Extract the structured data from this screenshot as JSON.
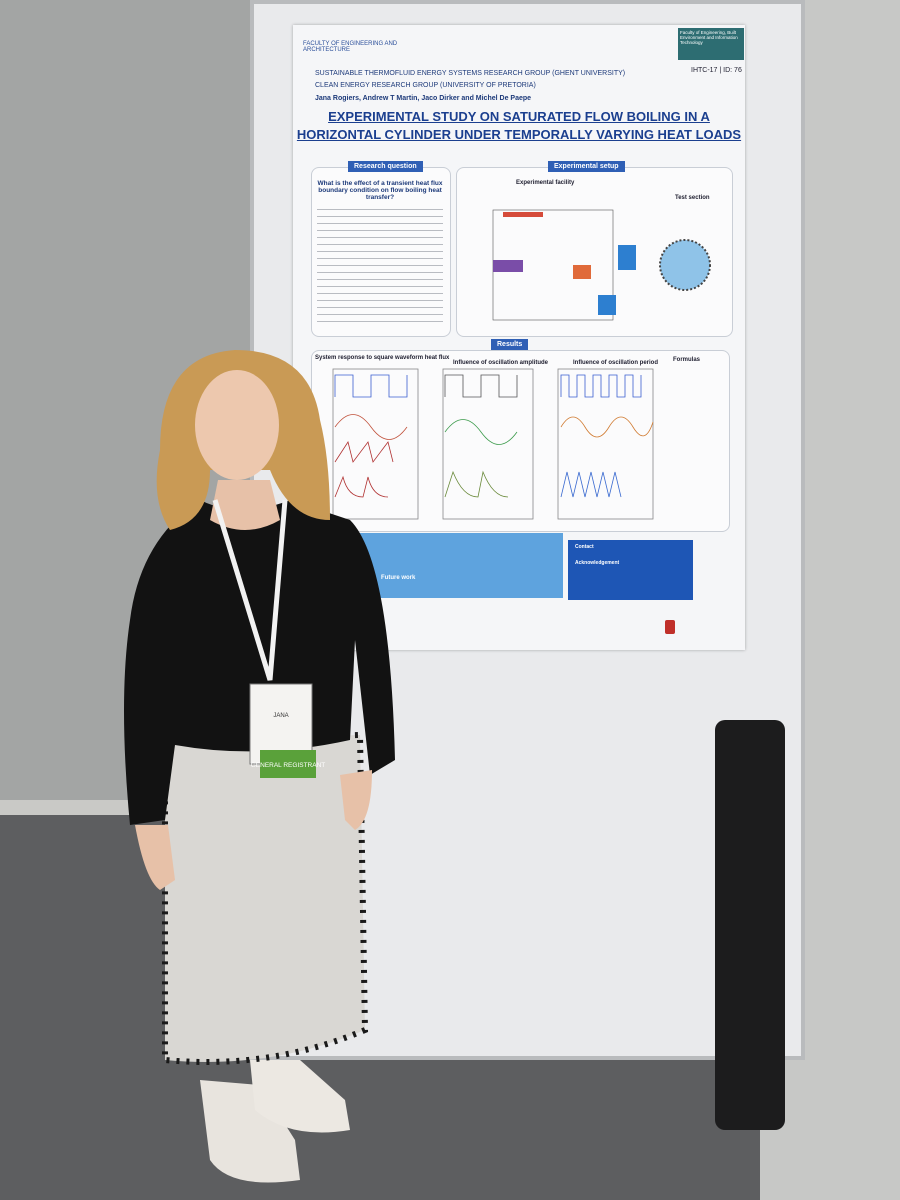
{
  "poster": {
    "logo_left": "FACULTY OF ENGINEERING AND ARCHITECTURE",
    "logo_right": "Faculty of Engineering, Built Environment and Information Technology",
    "groups": [
      "SUSTAINABLE THERMOFLUID ENERGY SYSTEMS RESEARCH GROUP (GHENT UNIVERSITY)",
      "CLEAN ENERGY RESEARCH GROUP (UNIVERSITY OF PRETORIA)"
    ],
    "conference_id": "IHTC-17 | ID: 76",
    "authors": "Jana Rogiers, Andrew T Martin, Jaco Dirker and Michel De Paepe",
    "title_lines": [
      "EXPERIMENTAL STUDY ON SATURATED FLOW BOILING IN A",
      "HORIZONTAL CYLINDER UNDER TEMPORALLY VARYING HEAT LOADS"
    ],
    "research_question": {
      "heading": "Research question",
      "question": "What is the effect of a transient heat flux boundary condition on flow boiling heat transfer?"
    },
    "experimental_setup": {
      "heading": "Experimental setup",
      "facility": "Experimental facility",
      "test_section": "Test section"
    },
    "results": {
      "heading": "Results",
      "panels": [
        "System response to square waveform heat flux",
        "Influence of oscillation amplitude",
        "Influence of oscillation period",
        "Formulas"
      ]
    },
    "future_work": "Future work",
    "contact": "Contact",
    "acknowledgement": "Acknowledgement"
  },
  "badge": {
    "name": "JANA",
    "role": "GENERAL REGISTRANT"
  }
}
